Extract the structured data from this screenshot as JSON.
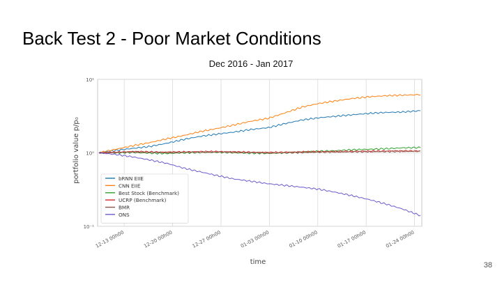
{
  "slide": {
    "title": "Back Test 2 - Poor Market Conditions",
    "subtitle": "Dec 2016 - Jan 2017",
    "page_number": "38"
  },
  "chart_data": {
    "type": "line",
    "xlabel": "time",
    "ylabel": "portfolio value p/p₀",
    "y_scale": "log",
    "ylim": [
      0.1,
      10
    ],
    "grid": true,
    "legend_position": "lower-left",
    "x_tick_labels": [
      "12-13 00h00",
      "12-20 00h00",
      "12-27 00h00",
      "01-03 00h00",
      "01-10 00h00",
      "01-17 00h00",
      "01-24 00h00"
    ],
    "y_tick_labels": [
      {
        "value": 10,
        "label": "10¹"
      },
      {
        "value": 1,
        "label": "10⁰"
      },
      {
        "value": 0.1,
        "label": "10⁻¹"
      }
    ],
    "series": [
      {
        "name": "bRNN EIIE",
        "color": "#1f77b4",
        "values": [
          1.0,
          1.08,
          1.15,
          1.22,
          1.35,
          1.52,
          1.68,
          1.8,
          1.92,
          2.08,
          2.2,
          2.5,
          2.8,
          3.0,
          3.15,
          3.3,
          3.45,
          3.55,
          3.6,
          3.75
        ]
      },
      {
        "name": "CNN EIIE",
        "color": "#ff7f0e",
        "values": [
          1.0,
          1.12,
          1.25,
          1.38,
          1.55,
          1.72,
          1.95,
          2.15,
          2.4,
          2.7,
          2.95,
          3.5,
          4.2,
          4.7,
          5.1,
          5.5,
          5.8,
          6.0,
          6.1,
          6.2
        ]
      },
      {
        "name": "Best Stock (Benchmark)",
        "color": "#2ca02c",
        "values": [
          1.0,
          1.0,
          1.01,
          0.99,
          0.98,
          1.0,
          1.01,
          1.02,
          1.0,
          0.99,
          0.98,
          1.0,
          1.03,
          1.05,
          1.07,
          1.1,
          1.12,
          1.14,
          1.17,
          1.18
        ]
      },
      {
        "name": "UCRP (Benchmark)",
        "color": "#d62728",
        "values": [
          1.0,
          1.02,
          1.04,
          1.03,
          1.02,
          1.03,
          1.04,
          1.04,
          1.03,
          1.02,
          1.01,
          1.02,
          1.03,
          1.04,
          1.04,
          1.05,
          1.05,
          1.06,
          1.06,
          1.06
        ]
      },
      {
        "name": "BMR",
        "color": "#8c564b",
        "values": [
          1.0,
          1.01,
          1.03,
          1.02,
          1.01,
          1.02,
          1.02,
          1.03,
          1.02,
          1.01,
          1.0,
          1.0,
          1.01,
          1.02,
          1.03,
          1.03,
          1.04,
          1.04,
          1.05,
          1.05
        ]
      },
      {
        "name": "ONS",
        "color": "#6a5acd",
        "values": [
          1.0,
          0.95,
          0.88,
          0.8,
          0.72,
          0.62,
          0.55,
          0.49,
          0.44,
          0.41,
          0.38,
          0.36,
          0.34,
          0.32,
          0.29,
          0.26,
          0.23,
          0.2,
          0.17,
          0.14
        ]
      }
    ]
  }
}
